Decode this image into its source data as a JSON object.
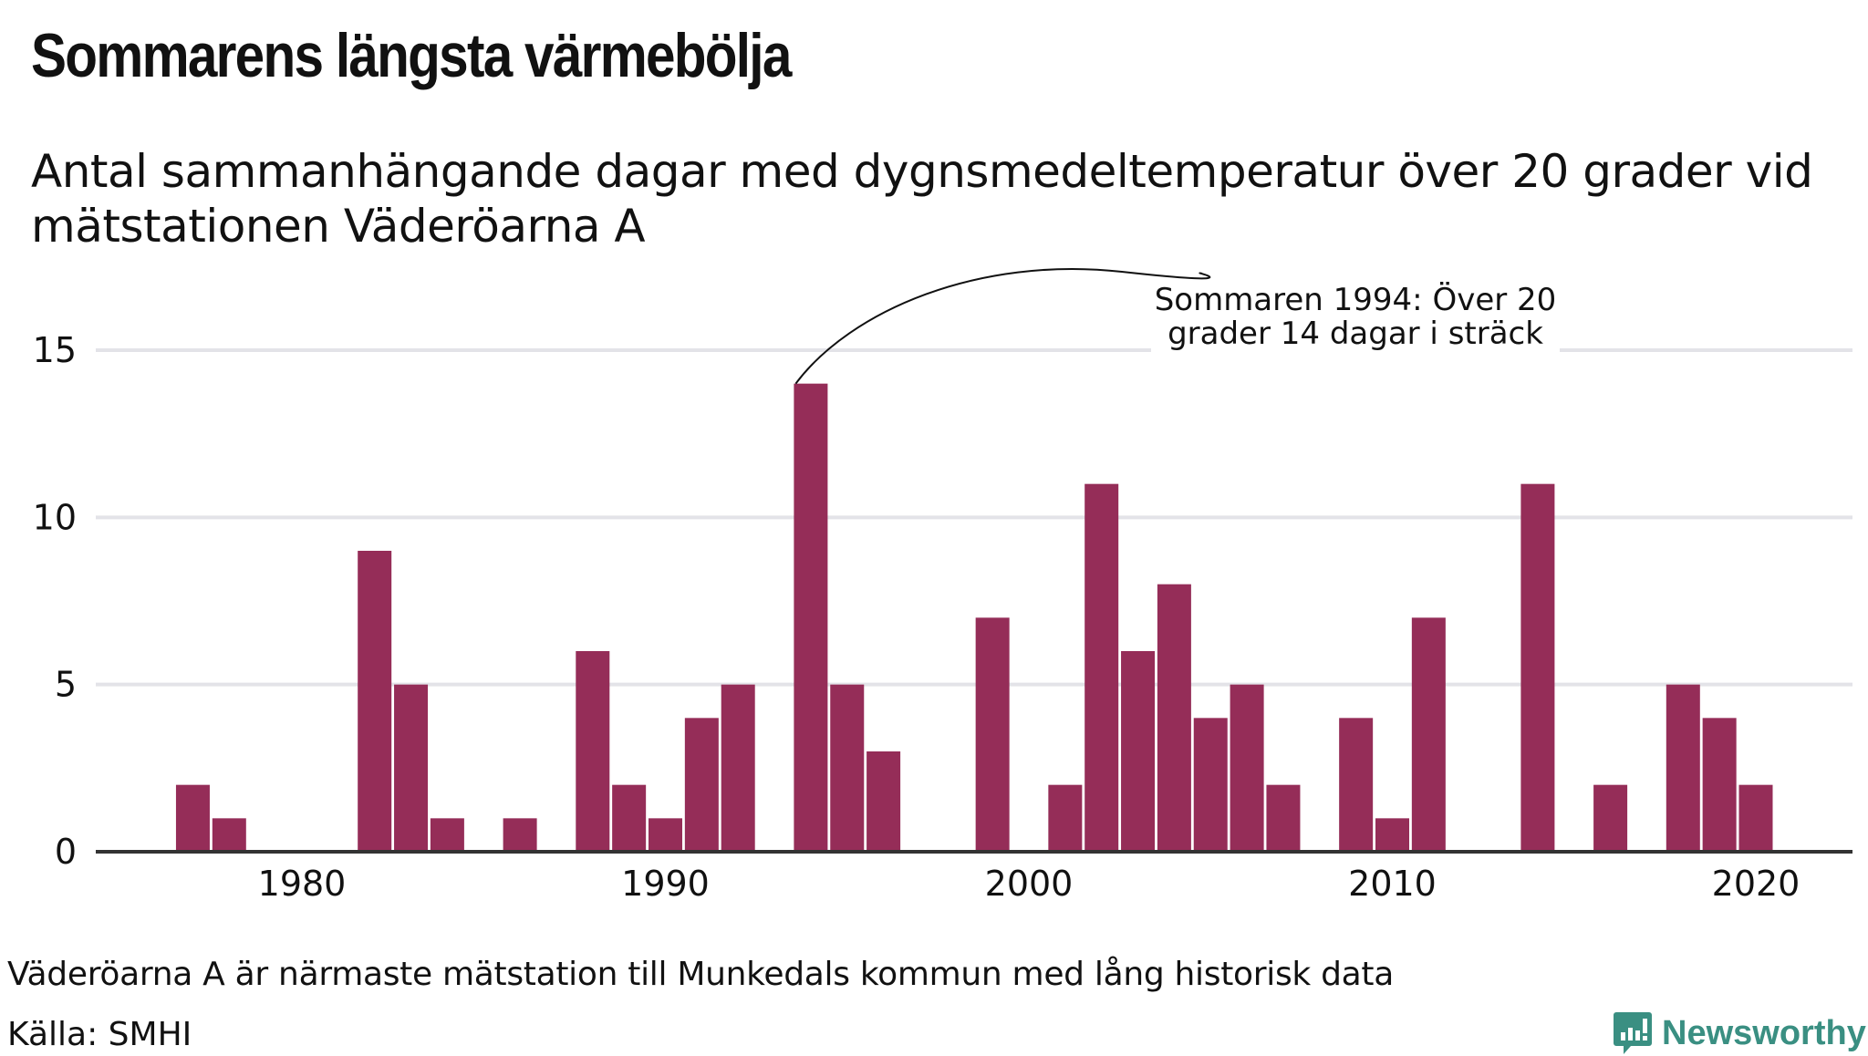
{
  "header": {
    "title": "Sommarens längsta värmebölja",
    "subtitle": "Antal sammanhängande dagar med dygnsmedeltemperatur över 20 grader vid mätstationen Väderöarna A"
  },
  "footer": {
    "note": "Väderöarna A är närmaste mätstation till Munkedals kommun med lång historisk data",
    "source": "Källa: SMHI",
    "brand": "Newsworthy"
  },
  "colors": {
    "bar": "#952d58",
    "grid": "#e3e3e8",
    "axis": "#333333",
    "brand": "#3a8f82"
  },
  "chart_data": {
    "type": "bar",
    "title": "Sommarens längsta värmebölja",
    "subtitle": "Antal sammanhängande dagar med dygnsmedeltemperatur över 20 grader vid mätstationen Väderöarna A",
    "xlabel": "",
    "ylabel": "",
    "xlim": [
      1974,
      2023
    ],
    "ylim": [
      0,
      15
    ],
    "grid": true,
    "x_ticks": [
      1980,
      1990,
      2000,
      2010,
      2020
    ],
    "x_tick_labels": [
      "1980",
      "1990",
      "2000",
      "2010",
      "2020"
    ],
    "y_ticks": [
      0,
      5,
      10,
      15
    ],
    "y_tick_labels": [
      "0",
      "5",
      "10",
      "15"
    ],
    "x": [
      1977,
      1978,
      1982,
      1983,
      1984,
      1986,
      1988,
      1989,
      1990,
      1991,
      1992,
      1994,
      1995,
      1996,
      1999,
      2001,
      2002,
      2003,
      2004,
      2005,
      2006,
      2007,
      2009,
      2010,
      2011,
      2014,
      2016,
      2018,
      2019,
      2020
    ],
    "values": [
      2,
      1,
      9,
      5,
      1,
      1,
      6,
      2,
      1,
      4,
      5,
      14,
      5,
      3,
      7,
      2,
      11,
      6,
      8,
      4,
      5,
      2,
      4,
      1,
      7,
      11,
      2,
      5,
      4,
      2
    ],
    "annotations": [
      {
        "x": 1994,
        "y": 14,
        "lines": [
          "Sommaren 1994: Över 20",
          "grader 14 dagar i sträck"
        ]
      }
    ]
  }
}
